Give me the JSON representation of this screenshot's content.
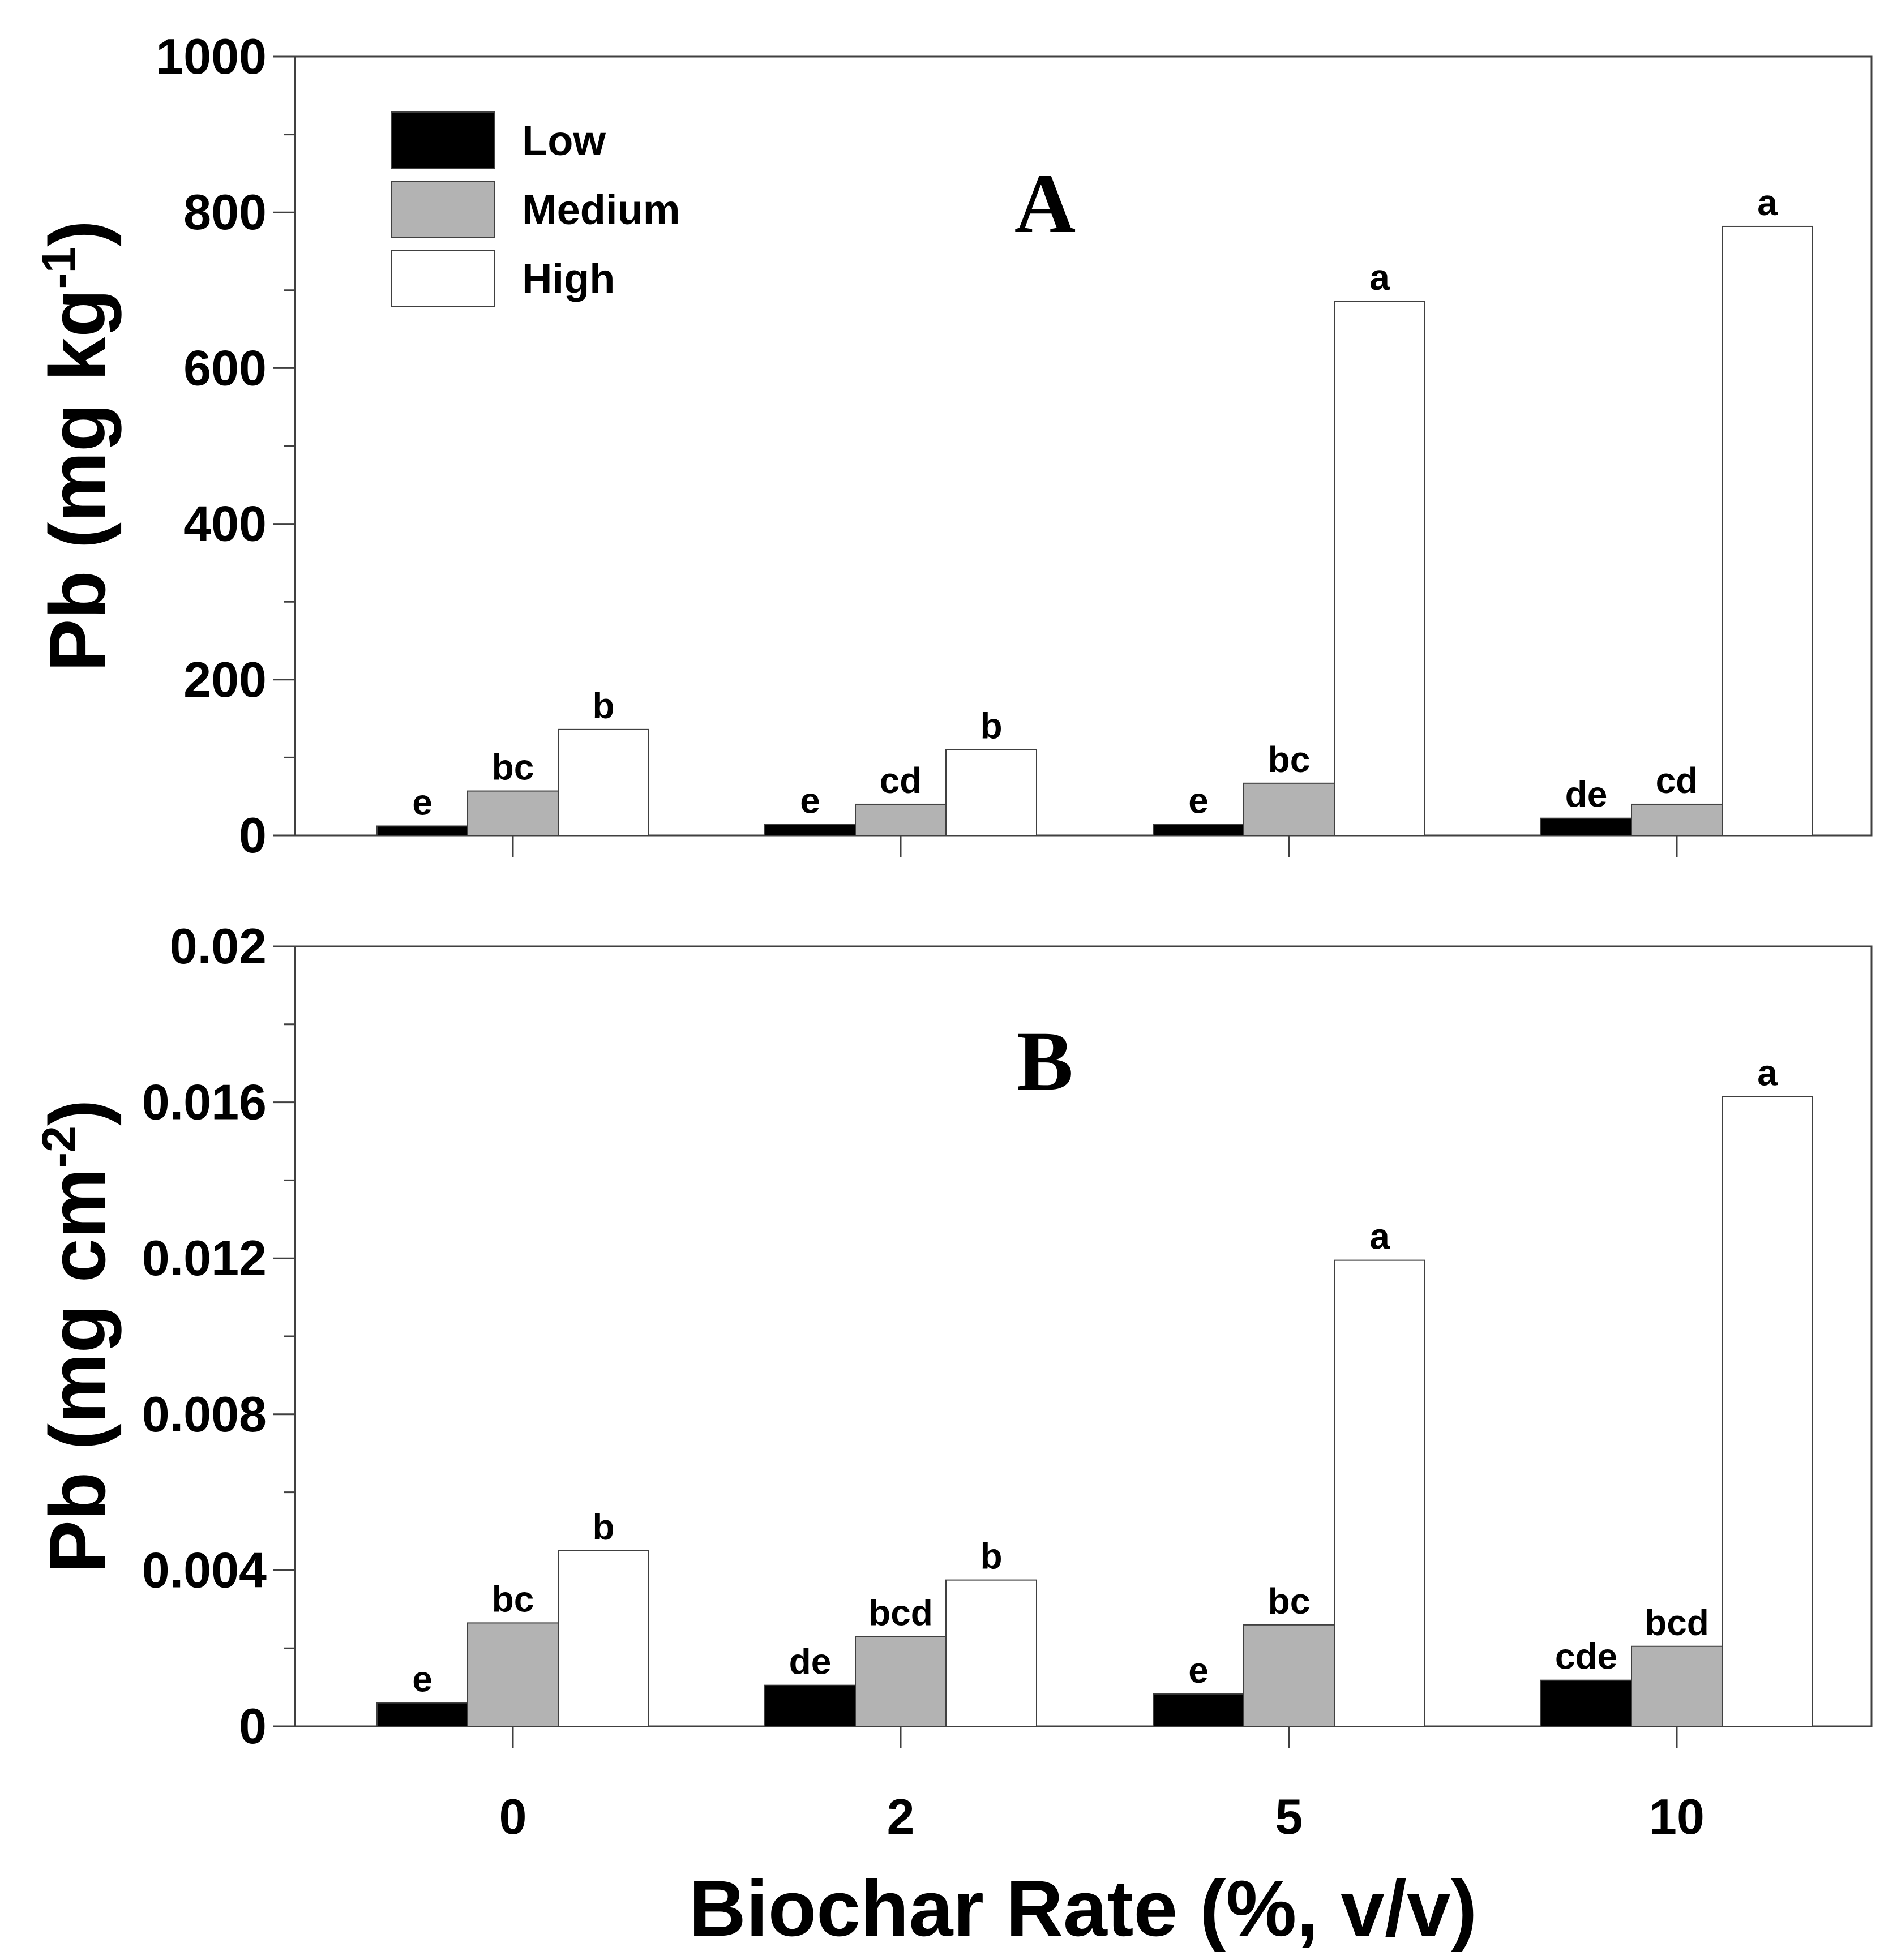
{
  "colors": {
    "Low": "#000000",
    "Medium": "#b3b3b3",
    "High": "#ffffff",
    "axis": "#404040"
  },
  "chart_data": [
    {
      "type": "bar",
      "panel": "A",
      "categories": [
        "0",
        "2",
        "5",
        "10"
      ],
      "series": [
        {
          "name": "Low",
          "values": [
            12,
            14,
            14,
            22
          ],
          "letters": [
            "e",
            "e",
            "e",
            "de"
          ]
        },
        {
          "name": "Medium",
          "values": [
            57,
            40,
            67,
            40
          ],
          "letters": [
            "bc",
            "cd",
            "bc",
            "cd"
          ]
        },
        {
          "name": "High",
          "values": [
            136,
            110,
            686,
            782
          ],
          "letters": [
            "b",
            "b",
            "a",
            "a"
          ]
        }
      ],
      "ylim": [
        0,
        1000
      ],
      "yticks": [
        "0",
        "200",
        "400",
        "600",
        "800",
        "1000"
      ],
      "ytick_values": [
        0,
        200,
        400,
        600,
        800,
        1000
      ],
      "ylabel_main": "Pb (mg kg",
      "ylabel_sup": "-1",
      "ylabel_end": ")",
      "legend": [
        "Low",
        "Medium",
        "High"
      ],
      "legend_position": "top-left"
    },
    {
      "type": "bar",
      "panel": "B",
      "categories": [
        "0",
        "2",
        "5",
        "10"
      ],
      "series": [
        {
          "name": "Low",
          "values": [
            0.0006,
            0.00105,
            0.00083,
            0.00118
          ],
          "letters": [
            "e",
            "de",
            "e",
            "cde"
          ]
        },
        {
          "name": "Medium",
          "values": [
            0.00265,
            0.0023,
            0.0026,
            0.00205
          ],
          "letters": [
            "bc",
            "bcd",
            "bc",
            "bcd"
          ]
        },
        {
          "name": "High",
          "values": [
            0.0045,
            0.00375,
            0.01195,
            0.01615
          ],
          "letters": [
            "b",
            "b",
            "a",
            "a"
          ]
        }
      ],
      "ylim": [
        0,
        0.02
      ],
      "yticks": [
        "0",
        "0.004",
        "0.008",
        "0.012",
        "0.016",
        "0.02"
      ],
      "ytick_values": [
        0,
        0.004,
        0.008,
        0.012,
        0.016,
        0.02
      ],
      "ylabel_main": "Pb (mg cm",
      "ylabel_sup": "-2",
      "ylabel_end": ")"
    }
  ],
  "xlabel": "Biochar Rate (%, v/v)"
}
